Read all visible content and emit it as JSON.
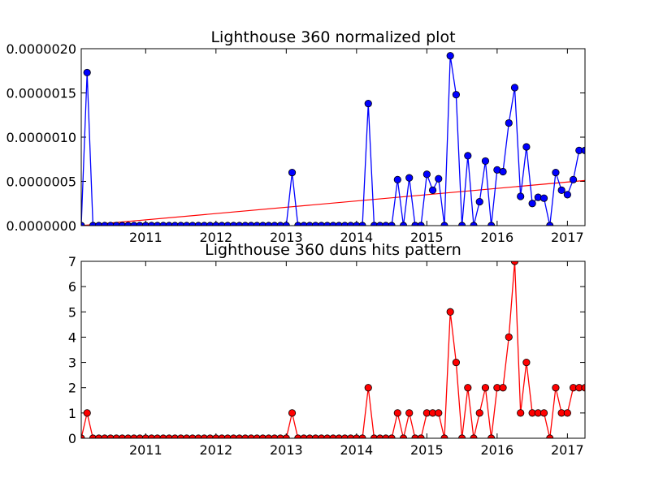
{
  "chart_data": [
    {
      "type": "line",
      "title": "Lighthouse 360 normalized plot",
      "xlabel": "",
      "ylabel": "",
      "xlim": [
        "2010-02",
        "2017-04"
      ],
      "ylim": [
        0,
        2e-06
      ],
      "y_ticks": [
        "0.0000000",
        "0.0000005",
        "0.0000010",
        "0.0000015",
        "0.0000020"
      ],
      "x_ticks": [
        "2011",
        "2012",
        "2013",
        "2014",
        "2015",
        "2016",
        "2017"
      ],
      "grid": false,
      "colors": {
        "series": "#0000ff",
        "marker_fill": "#0000ff",
        "trend": "#ff0000"
      },
      "series": [
        {
          "x": [
            "2010-02",
            "2010-03",
            "2010-04",
            "2010-05",
            "2010-06",
            "2010-07",
            "2010-08",
            "2010-09",
            "2010-10",
            "2010-11",
            "2010-12",
            "2011-01",
            "2011-02",
            "2011-03",
            "2011-04",
            "2011-05",
            "2011-06",
            "2011-07",
            "2011-08",
            "2011-09",
            "2011-10",
            "2011-11",
            "2011-12",
            "2012-01",
            "2012-02",
            "2012-03",
            "2012-04",
            "2012-05",
            "2012-06",
            "2012-07",
            "2012-08",
            "2012-09",
            "2012-10",
            "2012-11",
            "2012-12",
            "2013-01",
            "2013-02",
            "2013-03",
            "2013-04",
            "2013-05",
            "2013-06",
            "2013-07",
            "2013-08",
            "2013-09",
            "2013-10",
            "2013-11",
            "2013-12",
            "2014-01",
            "2014-02",
            "2014-03",
            "2014-04",
            "2014-05",
            "2014-06",
            "2014-07",
            "2014-08",
            "2014-09",
            "2014-10",
            "2014-11",
            "2014-12",
            "2015-01",
            "2015-02",
            "2015-03",
            "2015-04",
            "2015-05",
            "2015-06",
            "2015-07",
            "2015-08",
            "2015-09",
            "2015-10",
            "2015-11",
            "2015-12",
            "2016-01",
            "2016-02",
            "2016-03",
            "2016-04",
            "2016-05",
            "2016-06",
            "2016-07",
            "2016-08",
            "2016-09",
            "2016-10",
            "2016-11",
            "2016-12",
            "2017-01",
            "2017-02",
            "2017-03",
            "2017-04"
          ],
          "y": [
            0,
            1.73e-06,
            0,
            0,
            0,
            0,
            0,
            0,
            0,
            0,
            0,
            0,
            0,
            0,
            0,
            0,
            0,
            0,
            0,
            0,
            0,
            0,
            0,
            0,
            0,
            0,
            0,
            0,
            0,
            0,
            0,
            0,
            0,
            0,
            0,
            0,
            6e-07,
            0,
            0,
            0,
            0,
            0,
            0,
            0,
            0,
            0,
            0,
            0,
            0,
            1.38e-06,
            0,
            0,
            0,
            0,
            5.2e-07,
            0,
            5.4e-07,
            0,
            0,
            5.8e-07,
            4e-07,
            5.3e-07,
            0,
            1.92e-06,
            1.48e-06,
            0,
            7.9e-07,
            0,
            2.7e-07,
            7.3e-07,
            0,
            6.3e-07,
            6.1e-07,
            1.16e-06,
            1.56e-06,
            3.3e-07,
            8.9e-07,
            2.5e-07,
            3.2e-07,
            3.1e-07,
            0,
            6e-07,
            4e-07,
            3.5e-07,
            5.2e-07,
            8.5e-07,
            8.5e-07
          ]
        }
      ],
      "trend": {
        "x": [
          "2010-02",
          "2017-04"
        ],
        "y": [
          0,
          5.1e-07
        ]
      }
    },
    {
      "type": "line",
      "title": "Lighthouse 360 duns hits pattern",
      "xlabel": "",
      "ylabel": "",
      "xlim": [
        "2010-02",
        "2017-04"
      ],
      "ylim": [
        0,
        7
      ],
      "y_ticks": [
        "0",
        "1",
        "2",
        "3",
        "4",
        "5",
        "6",
        "7"
      ],
      "x_ticks": [
        "2011",
        "2012",
        "2013",
        "2014",
        "2015",
        "2016",
        "2017"
      ],
      "grid": false,
      "colors": {
        "series": "#ff0000",
        "marker_fill": "#ff0000"
      },
      "series": [
        {
          "x": [
            "2010-02",
            "2010-03",
            "2010-04",
            "2010-05",
            "2010-06",
            "2010-07",
            "2010-08",
            "2010-09",
            "2010-10",
            "2010-11",
            "2010-12",
            "2011-01",
            "2011-02",
            "2011-03",
            "2011-04",
            "2011-05",
            "2011-06",
            "2011-07",
            "2011-08",
            "2011-09",
            "2011-10",
            "2011-11",
            "2011-12",
            "2012-01",
            "2012-02",
            "2012-03",
            "2012-04",
            "2012-05",
            "2012-06",
            "2012-07",
            "2012-08",
            "2012-09",
            "2012-10",
            "2012-11",
            "2012-12",
            "2013-01",
            "2013-02",
            "2013-03",
            "2013-04",
            "2013-05",
            "2013-06",
            "2013-07",
            "2013-08",
            "2013-09",
            "2013-10",
            "2013-11",
            "2013-12",
            "2014-01",
            "2014-02",
            "2014-03",
            "2014-04",
            "2014-05",
            "2014-06",
            "2014-07",
            "2014-08",
            "2014-09",
            "2014-10",
            "2014-11",
            "2014-12",
            "2015-01",
            "2015-02",
            "2015-03",
            "2015-04",
            "2015-05",
            "2015-06",
            "2015-07",
            "2015-08",
            "2015-09",
            "2015-10",
            "2015-11",
            "2015-12",
            "2016-01",
            "2016-02",
            "2016-03",
            "2016-04",
            "2016-05",
            "2016-06",
            "2016-07",
            "2016-08",
            "2016-09",
            "2016-10",
            "2016-11",
            "2016-12",
            "2017-01",
            "2017-02",
            "2017-03",
            "2017-04"
          ],
          "y": [
            0,
            1,
            0,
            0,
            0,
            0,
            0,
            0,
            0,
            0,
            0,
            0,
            0,
            0,
            0,
            0,
            0,
            0,
            0,
            0,
            0,
            0,
            0,
            0,
            0,
            0,
            0,
            0,
            0,
            0,
            0,
            0,
            0,
            0,
            0,
            0,
            1,
            0,
            0,
            0,
            0,
            0,
            0,
            0,
            0,
            0,
            0,
            0,
            0,
            2,
            0,
            0,
            0,
            0,
            1,
            0,
            1,
            0,
            0,
            1,
            1,
            1,
            0,
            5,
            3,
            0,
            2,
            0,
            1,
            2,
            0,
            2,
            2,
            4,
            7,
            1,
            3,
            1,
            1,
            1,
            0,
            2,
            1,
            1,
            2,
            2,
            2
          ]
        }
      ]
    }
  ]
}
